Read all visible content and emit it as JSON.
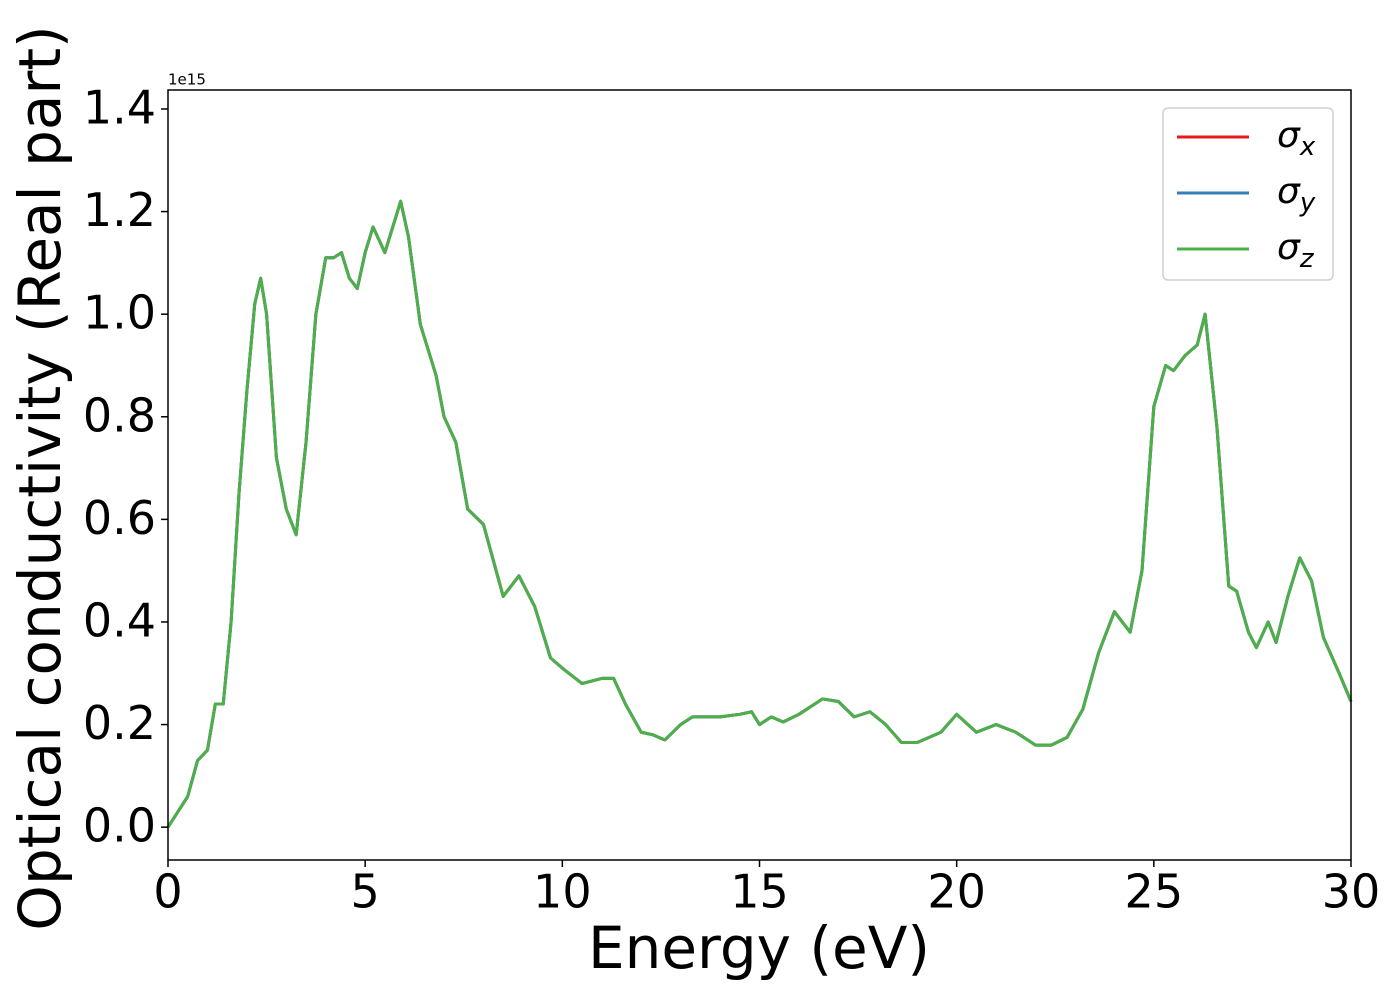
{
  "chart_data": {
    "type": "line",
    "xlabel": "Energy (eV)",
    "ylabel": "Optical conductivity (Real part)",
    "y_offset_text": "1e15",
    "x": [
      0,
      0.25,
      0.5,
      0.75,
      1.0,
      1.2,
      1.4,
      1.6,
      1.8,
      2.0,
      2.2,
      2.35,
      2.5,
      2.75,
      3.0,
      3.25,
      3.5,
      3.75,
      4.0,
      4.2,
      4.4,
      4.6,
      4.8,
      5.0,
      5.2,
      5.5,
      5.9,
      6.1,
      6.4,
      6.8,
      7.0,
      7.3,
      7.6,
      8.0,
      8.5,
      8.9,
      9.3,
      9.7,
      10.0,
      10.5,
      11.0,
      11.3,
      11.6,
      12.0,
      12.3,
      12.6,
      13.0,
      13.3,
      14.0,
      14.5,
      14.8,
      15.0,
      15.3,
      15.6,
      16.0,
      16.6,
      17.0,
      17.4,
      17.8,
      18.2,
      18.6,
      19.0,
      19.6,
      20.0,
      20.5,
      21.0,
      21.5,
      22.0,
      22.4,
      22.8,
      23.2,
      23.6,
      24.0,
      24.4,
      24.7,
      25.0,
      25.3,
      25.5,
      25.8,
      26.1,
      26.3,
      26.6,
      26.9,
      27.1,
      27.4,
      27.6,
      27.9,
      28.1,
      28.4,
      28.7,
      29.0,
      29.3,
      29.7,
      30.0
    ],
    "series": [
      {
        "name": "σx",
        "color": "#e41a1c",
        "values": [
          0.0,
          0.03,
          0.06,
          0.13,
          0.15,
          0.24,
          0.24,
          0.4,
          0.65,
          0.85,
          1.02,
          1.07,
          1.0,
          0.72,
          0.62,
          0.57,
          0.75,
          1.0,
          1.11,
          1.11,
          1.12,
          1.07,
          1.05,
          1.12,
          1.17,
          1.12,
          1.22,
          1.15,
          0.98,
          0.88,
          0.8,
          0.75,
          0.62,
          0.59,
          0.45,
          0.49,
          0.43,
          0.33,
          0.31,
          0.28,
          0.29,
          0.29,
          0.24,
          0.185,
          0.18,
          0.17,
          0.2,
          0.215,
          0.215,
          0.22,
          0.225,
          0.2,
          0.215,
          0.205,
          0.22,
          0.25,
          0.245,
          0.215,
          0.225,
          0.2,
          0.165,
          0.165,
          0.185,
          0.22,
          0.185,
          0.2,
          0.185,
          0.16,
          0.16,
          0.175,
          0.23,
          0.34,
          0.42,
          0.38,
          0.5,
          0.82,
          0.9,
          0.89,
          0.92,
          0.94,
          1.0,
          0.78,
          0.47,
          0.46,
          0.38,
          0.35,
          0.4,
          0.36,
          0.45,
          0.525,
          0.48,
          0.37,
          0.3,
          0.245
        ]
      },
      {
        "name": "σy",
        "color": "#377eb8",
        "values": [
          0.0,
          0.03,
          0.06,
          0.13,
          0.15,
          0.24,
          0.24,
          0.4,
          0.65,
          0.85,
          1.02,
          1.07,
          1.0,
          0.72,
          0.62,
          0.57,
          0.75,
          1.0,
          1.11,
          1.11,
          1.12,
          1.07,
          1.05,
          1.12,
          1.17,
          1.12,
          1.22,
          1.15,
          0.98,
          0.88,
          0.8,
          0.75,
          0.62,
          0.59,
          0.45,
          0.49,
          0.43,
          0.33,
          0.31,
          0.28,
          0.29,
          0.29,
          0.24,
          0.185,
          0.18,
          0.17,
          0.2,
          0.215,
          0.215,
          0.22,
          0.225,
          0.2,
          0.215,
          0.205,
          0.22,
          0.25,
          0.245,
          0.215,
          0.225,
          0.2,
          0.165,
          0.165,
          0.185,
          0.22,
          0.185,
          0.2,
          0.185,
          0.16,
          0.16,
          0.175,
          0.23,
          0.34,
          0.42,
          0.38,
          0.5,
          0.82,
          0.9,
          0.89,
          0.92,
          0.94,
          1.0,
          0.78,
          0.47,
          0.46,
          0.38,
          0.35,
          0.4,
          0.36,
          0.45,
          0.525,
          0.48,
          0.37,
          0.3,
          0.245
        ]
      },
      {
        "name": "σz",
        "color": "#4daf4a",
        "values": [
          0.0,
          0.03,
          0.06,
          0.13,
          0.15,
          0.24,
          0.24,
          0.4,
          0.65,
          0.85,
          1.02,
          1.07,
          1.0,
          0.72,
          0.62,
          0.57,
          0.75,
          1.0,
          1.11,
          1.11,
          1.12,
          1.07,
          1.05,
          1.12,
          1.17,
          1.12,
          1.22,
          1.15,
          0.98,
          0.88,
          0.8,
          0.75,
          0.62,
          0.59,
          0.45,
          0.49,
          0.43,
          0.33,
          0.31,
          0.28,
          0.29,
          0.29,
          0.24,
          0.185,
          0.18,
          0.17,
          0.2,
          0.215,
          0.215,
          0.22,
          0.225,
          0.2,
          0.215,
          0.205,
          0.22,
          0.25,
          0.245,
          0.215,
          0.225,
          0.2,
          0.165,
          0.165,
          0.185,
          0.22,
          0.185,
          0.2,
          0.185,
          0.16,
          0.16,
          0.175,
          0.23,
          0.34,
          0.42,
          0.38,
          0.5,
          0.82,
          0.9,
          0.89,
          0.92,
          0.94,
          1.0,
          0.78,
          0.47,
          0.46,
          0.38,
          0.35,
          0.4,
          0.36,
          0.45,
          0.525,
          0.48,
          0.37,
          0.3,
          0.245
        ]
      }
    ],
    "xlim": [
      0,
      30
    ],
    "xticks": [
      0,
      5,
      10,
      15,
      20,
      25,
      30
    ],
    "ylim": [
      -0.064,
      1.437
    ],
    "yticks": [
      {
        "value": 0,
        "label": "0.0"
      },
      0.2,
      0.4,
      0.6,
      0.8,
      {
        "value": 1,
        "label": "1.0"
      },
      1.2,
      1.4
    ],
    "legend": "upper right",
    "grid": false
  }
}
